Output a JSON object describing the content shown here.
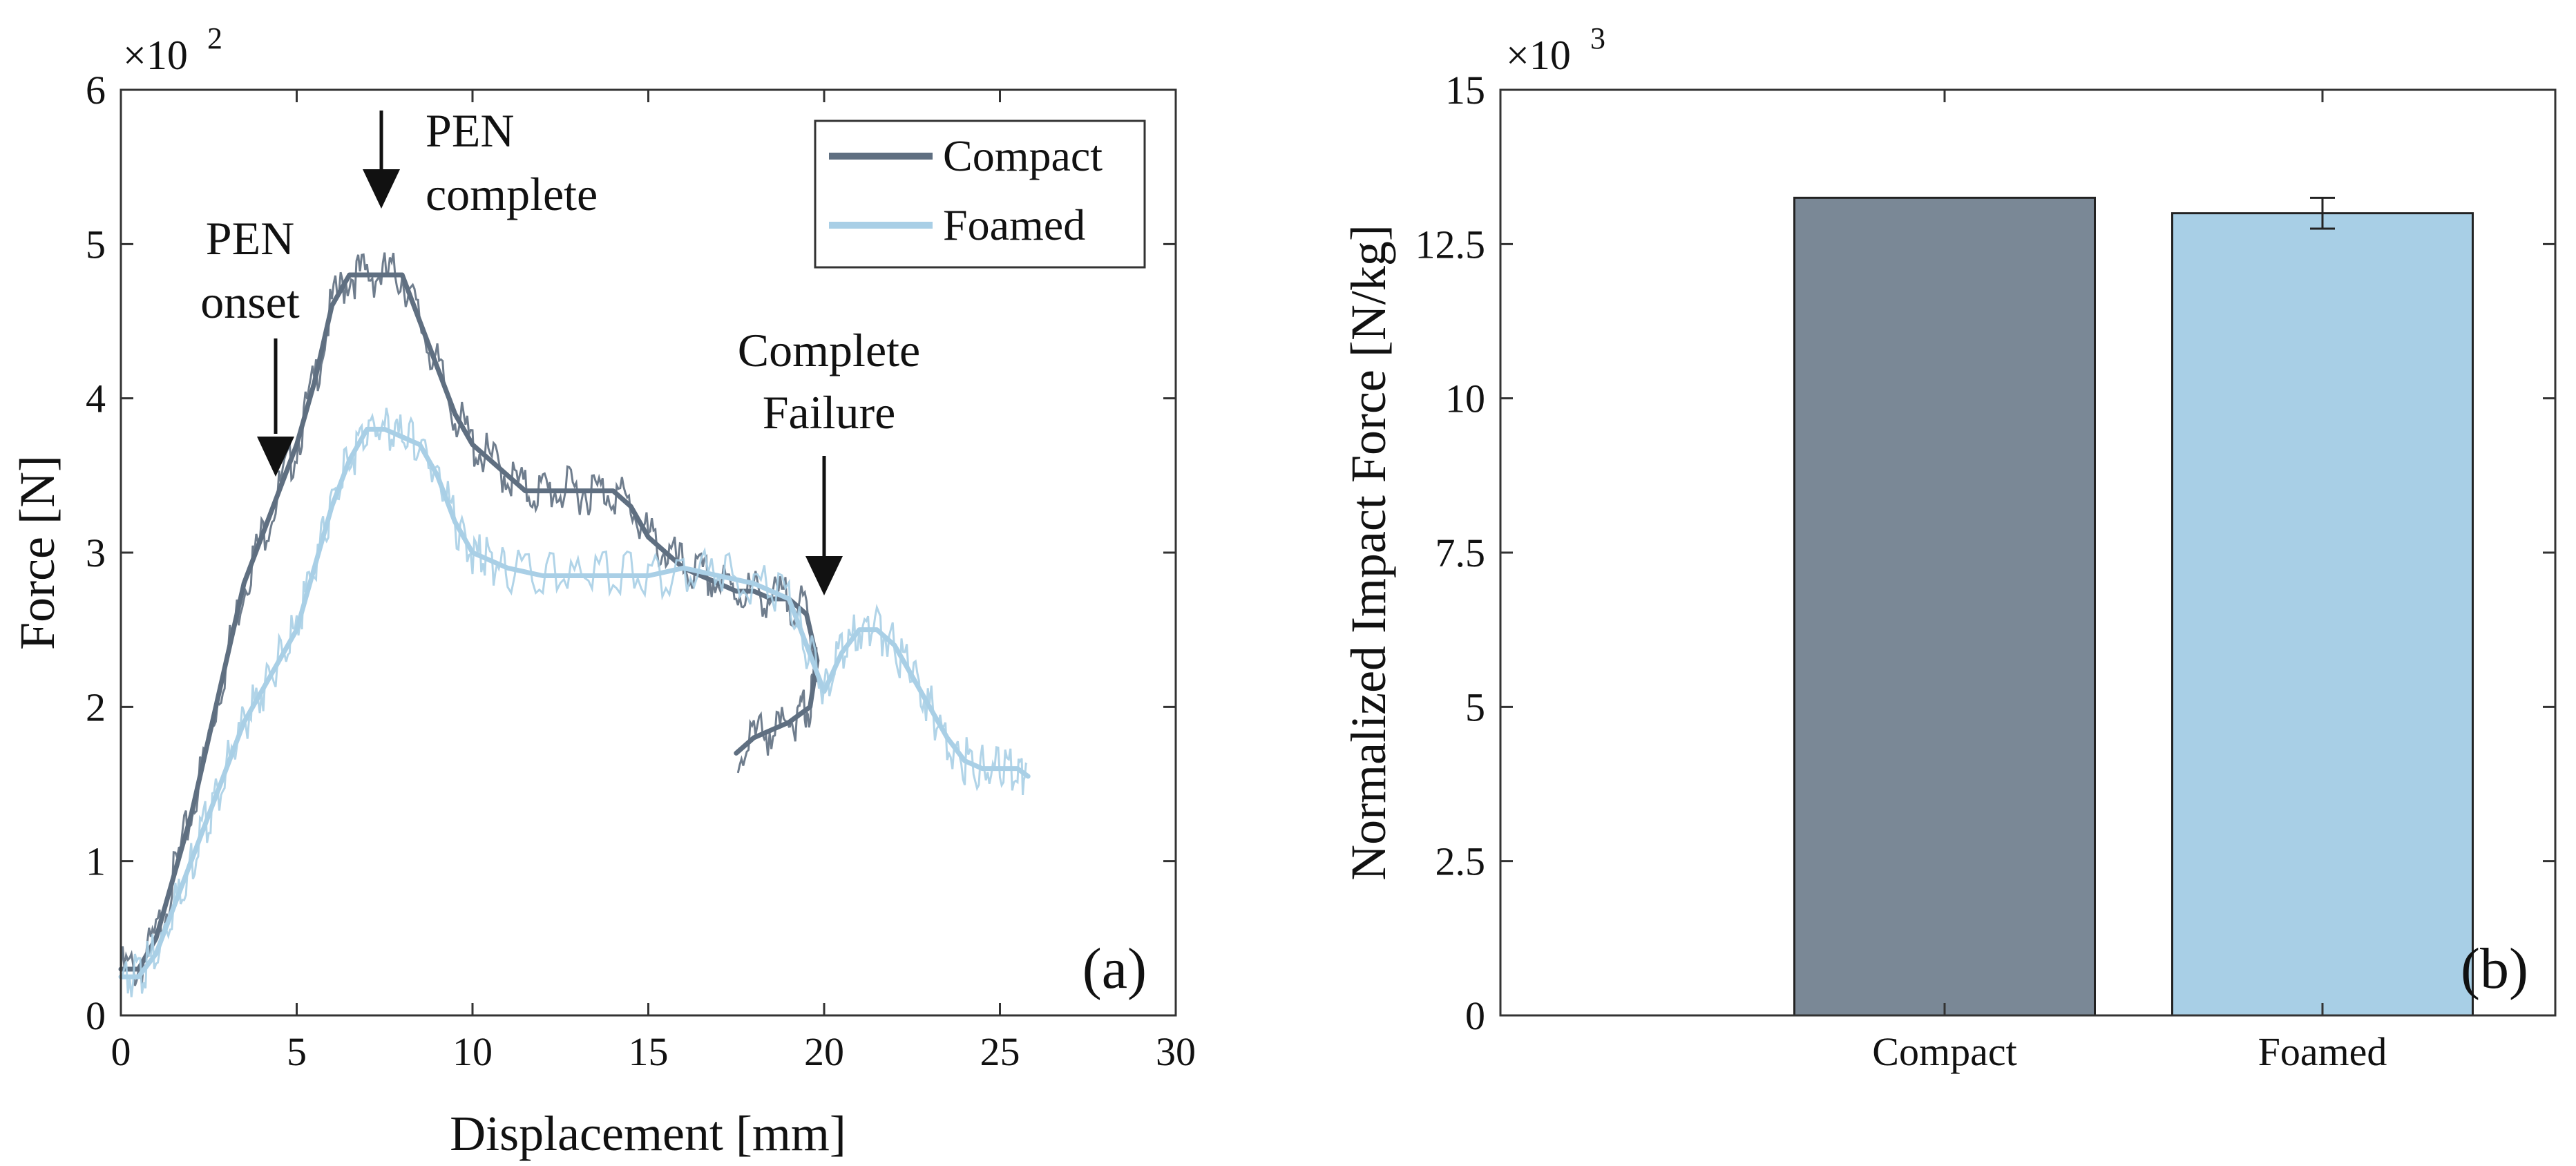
{
  "chart_data": [
    {
      "panel_label": "(a)",
      "type": "line",
      "xlabel": "Displacement [mm]",
      "ylabel": "Force [N]",
      "xlim": [
        0,
        30
      ],
      "ylim": [
        0,
        6
      ],
      "y_multiplier": "×10",
      "y_multiplier_exp": "2",
      "x_ticks": [
        "0",
        "5",
        "10",
        "15",
        "20",
        "25",
        "30"
      ],
      "y_ticks": [
        "0",
        "1",
        "2",
        "3",
        "4",
        "5",
        "6"
      ],
      "legend_position": "top-right",
      "series": [
        {
          "name": "Compact",
          "color": "#5f6f81",
          "x": [
            0,
            0.5,
            1,
            1.5,
            2,
            2.5,
            3,
            3.5,
            4,
            4.5,
            5,
            5.5,
            6,
            6.5,
            7,
            7.5,
            8,
            8.5,
            9,
            9.5,
            10,
            10.5,
            11,
            11.5,
            12,
            12.5,
            13,
            13.5,
            14,
            14.5,
            15,
            15.5,
            16,
            16.5,
            17,
            17.5,
            18,
            18.5,
            19,
            19.5,
            19.8,
            19.6,
            19.3,
            19.0,
            18.5,
            18.0,
            17.5
          ],
          "y": [
            0.3,
            0.3,
            0.5,
            0.9,
            1.3,
            1.8,
            2.3,
            2.8,
            3.1,
            3.4,
            3.7,
            4.1,
            4.6,
            4.8,
            4.8,
            4.8,
            4.8,
            4.5,
            4.2,
            3.9,
            3.7,
            3.6,
            3.5,
            3.4,
            3.4,
            3.4,
            3.4,
            3.4,
            3.4,
            3.3,
            3.1,
            3.0,
            2.9,
            2.85,
            2.8,
            2.75,
            2.75,
            2.7,
            2.7,
            2.6,
            2.3,
            2.0,
            1.95,
            1.9,
            1.85,
            1.8,
            1.7
          ]
        },
        {
          "name": "Foamed",
          "color": "#a9cfe6",
          "x": [
            0,
            0.5,
            1,
            1.5,
            2,
            2.5,
            3,
            3.5,
            4,
            4.5,
            5,
            5.5,
            6,
            6.5,
            7,
            7.5,
            8,
            8.5,
            9,
            9.5,
            10,
            10.5,
            11,
            12,
            13,
            14,
            15,
            16,
            17,
            18,
            19,
            19.5,
            20,
            20.5,
            21,
            21.5,
            22,
            22.5,
            23,
            23.5,
            24,
            24.5,
            25,
            25.5,
            25.8
          ],
          "y": [
            0.25,
            0.25,
            0.4,
            0.7,
            1.0,
            1.3,
            1.6,
            1.9,
            2.1,
            2.3,
            2.5,
            2.9,
            3.3,
            3.6,
            3.8,
            3.8,
            3.75,
            3.7,
            3.5,
            3.2,
            3.0,
            2.95,
            2.9,
            2.85,
            2.85,
            2.85,
            2.85,
            2.9,
            2.85,
            2.8,
            2.7,
            2.4,
            2.1,
            2.35,
            2.5,
            2.5,
            2.4,
            2.2,
            2.0,
            1.8,
            1.65,
            1.6,
            1.6,
            1.6,
            1.55
          ]
        }
      ],
      "annotations": [
        {
          "lines": [
            "PEN",
            "onset"
          ],
          "x": 4.5,
          "y": 3.4
        },
        {
          "lines": [
            "PEN",
            "complete"
          ],
          "x": 7.4,
          "y": 5.2
        },
        {
          "lines": [
            "Complete",
            "Failure"
          ],
          "x": 20.0,
          "y": 2.7
        }
      ]
    },
    {
      "panel_label": "(b)",
      "type": "bar",
      "categories": [
        "Compact",
        "Foamed"
      ],
      "values": [
        13.25,
        13.0
      ],
      "errors": [
        0,
        0.25
      ],
      "colors": [
        "#7a8896",
        "#a8cfe6"
      ],
      "ylabel": "Normalized Impact Force [N/kg]",
      "ylim": [
        0,
        15
      ],
      "y_multiplier": "×10",
      "y_multiplier_exp": "3",
      "y_ticks": [
        "0",
        "2.5",
        "5",
        "7.5",
        "10",
        "12.5",
        "15"
      ],
      "y_tick_values": [
        0,
        2.5,
        5,
        7.5,
        10,
        12.5,
        15
      ]
    }
  ]
}
